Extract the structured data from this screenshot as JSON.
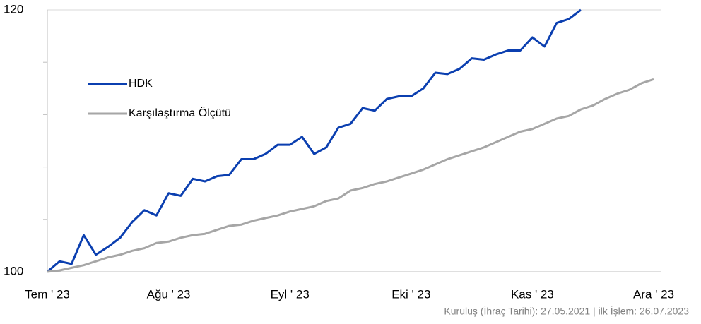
{
  "chart_data": {
    "type": "line",
    "categories": [
      "Tem ' 23",
      null,
      null,
      null,
      null,
      null,
      null,
      null,
      null,
      null,
      "Ağu ' 23",
      null,
      null,
      null,
      null,
      null,
      null,
      null,
      null,
      null,
      "Eyl ' 23",
      null,
      null,
      null,
      null,
      null,
      null,
      null,
      null,
      null,
      "Eki ' 23",
      null,
      null,
      null,
      null,
      null,
      null,
      null,
      null,
      null,
      "Kas ' 23",
      null,
      null,
      null,
      null,
      null,
      null,
      null,
      null,
      null,
      "Ara ' 23"
    ],
    "series": [
      {
        "name": "HDK",
        "color": "#0b3fb0",
        "values": [
          100,
          100.8,
          100.6,
          102.8,
          101.3,
          101.9,
          102.6,
          103.8,
          104.7,
          104.3,
          106.0,
          105.8,
          107.1,
          106.9,
          107.3,
          107.4,
          108.6,
          108.6,
          109.0,
          109.7,
          109.7,
          110.3,
          109.0,
          109.5,
          111.0,
          111.3,
          112.5,
          112.3,
          113.2,
          113.4,
          113.4,
          114.0,
          115.2,
          115.1,
          115.5,
          116.3,
          116.2,
          116.6,
          116.9,
          116.9,
          117.9,
          117.2,
          119.0,
          119.3,
          120,
          null,
          null,
          null,
          null,
          null,
          null
        ]
      },
      {
        "name": "Karşılaştırma Ölçütü",
        "color": "#a6a6a6",
        "values": [
          100,
          100.1,
          100.3,
          100.5,
          100.8,
          101.1,
          101.3,
          101.6,
          101.8,
          102.2,
          102.3,
          102.6,
          102.8,
          102.9,
          103.2,
          103.5,
          103.6,
          103.9,
          104.1,
          104.3,
          104.6,
          104.8,
          105.0,
          105.4,
          105.6,
          106.2,
          106.4,
          106.7,
          106.9,
          107.2,
          107.5,
          107.8,
          108.2,
          108.6,
          108.9,
          109.2,
          109.5,
          109.9,
          110.3,
          110.7,
          110.9,
          111.3,
          111.7,
          111.9,
          112.4,
          112.7,
          113.2,
          113.6,
          113.9,
          114.4,
          114.7
        ]
      }
    ],
    "ylim": [
      100,
      120
    ],
    "yticks": [
      100,
      120
    ],
    "minor_yticks": [
      104,
      108,
      112,
      116
    ],
    "grid": true,
    "legend": "upper left",
    "footnote": "Kuruluş (İhraç Tarihi): 27.05.2021 | ilk İşlem: 26.07.2023"
  }
}
